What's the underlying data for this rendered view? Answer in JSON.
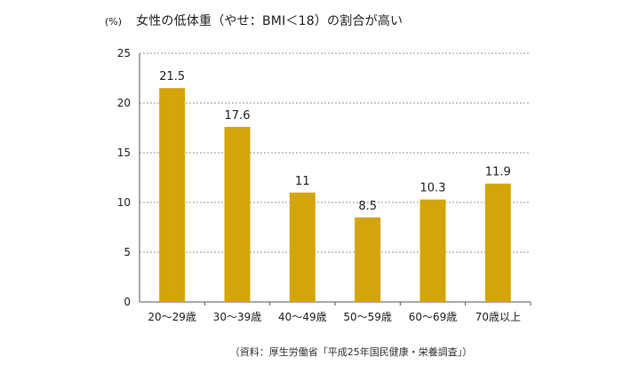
{
  "chart_data": {
    "type": "bar",
    "title": "女性の低体重（やせ：BMI＜18）の割合が高い",
    "ylabel": "(%)",
    "categories": [
      "20〜29歳",
      "30〜39歳",
      "40〜49歳",
      "50〜59歳",
      "60〜69歳",
      "70歳以上"
    ],
    "values": [
      21.5,
      17.6,
      11,
      8.5,
      10.3,
      11.9
    ],
    "ylim": [
      0,
      25
    ],
    "yticks": [
      0,
      5,
      10,
      15,
      20,
      25
    ],
    "grid": true,
    "bar_color": "#D4A50A",
    "source": "（資料：厚生労働省「平成25年国民健康・栄養調査」）"
  }
}
